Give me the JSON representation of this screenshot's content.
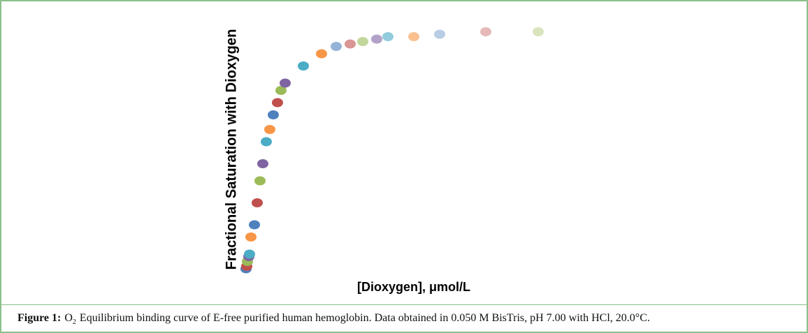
{
  "chart_data": {
    "type": "scatter",
    "y_label": "Fractional Saturation with Dioxygen",
    "x_label": "[Dioxygen], μmol/L",
    "xlim": [
      0,
      90
    ],
    "ylim": [
      0,
      1
    ],
    "x": [
      1,
      1.2,
      1.4,
      1.8,
      2,
      2.4,
      3.4,
      4.2,
      5,
      5.8,
      6.8,
      7.8,
      8.8,
      10,
      11,
      12.2,
      17.4,
      22.6,
      26.8,
      30.8,
      34.4,
      38.4,
      41.6,
      49,
      56.4,
      69.6,
      84.6
    ],
    "values": [
      0.02,
      0.03,
      0.05,
      0.07,
      0.08,
      0.15,
      0.2,
      0.29,
      0.38,
      0.45,
      0.54,
      0.59,
      0.65,
      0.7,
      0.75,
      0.78,
      0.85,
      0.9,
      0.93,
      0.94,
      0.95,
      0.96,
      0.97,
      0.97,
      0.98,
      0.99,
      0.99
    ],
    "colors": [
      "#4f81bd",
      "#c0504d",
      "#9bbb59",
      "#8064a2",
      "#4bacc6",
      "#f79646",
      "#4f81bd",
      "#c0504d",
      "#9bbb59",
      "#8064a2",
      "#4bacc6",
      "#f79646",
      "#4f81bd",
      "#c0504d",
      "#9bbb59",
      "#8064a2",
      "#4bacc6",
      "#f79646",
      "#95b3d7",
      "#d99694",
      "#c3d69b",
      "#b3a2c7",
      "#93cddd",
      "#fac08f",
      "#b9cde5",
      "#e6b9b8",
      "#d7e4bd"
    ]
  },
  "caption": {
    "label": "Figure 1:",
    "parts": [
      "O",
      "2",
      "Equilibrium binding curve of E-free purified human hemoglobin.  Data obtained in 0.050 M BisTris, pH 7.00 with HCl, 20.0°C."
    ]
  }
}
